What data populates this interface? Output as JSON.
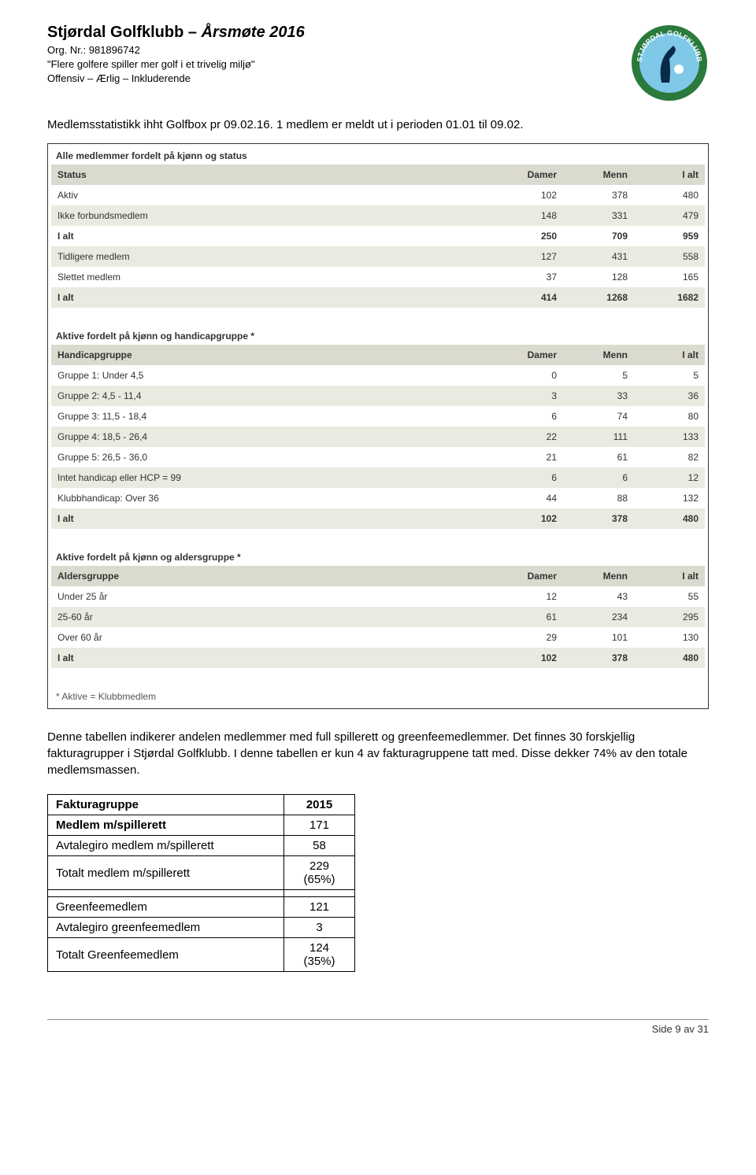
{
  "header": {
    "title_plain": "Stjørdal Golfklubb – ",
    "title_em": "Årsmøte 2016",
    "org": "Org. Nr.: 981896742",
    "slogan": "\"Flere golfere spiller mer golf i et trivelig miljø\"",
    "values": "Offensiv – Ærlig – Inkluderende"
  },
  "logo": {
    "outer_color": "#2a7a3c",
    "inner_color": "#7fc8e8",
    "text_top": "STJØRDA",
    "text_bot": "GOLFKLU"
  },
  "intro": "Medlemsstatistikk ihht Golfbox pr 09.02.16. 1 medlem er meldt ut i perioden 01.01 til 09.02.",
  "tables_style": {
    "head_bg": "#dbdace",
    "row_odd_bg": "#ebeae0",
    "row_even_bg": "#ffffff",
    "font_family": "Verdana",
    "font_size_pt": 9,
    "text_color": "#333333"
  },
  "table1": {
    "title": "Alle medlemmer fordelt på kjønn og status",
    "columns": [
      "Status",
      "Damer",
      "Menn",
      "I alt"
    ],
    "rows": [
      {
        "label": "Aktiv",
        "damer": 102,
        "menn": 378,
        "ialt": 480,
        "bold": false
      },
      {
        "label": "Ikke forbundsmedlem",
        "damer": 148,
        "menn": 331,
        "ialt": 479,
        "bold": false
      },
      {
        "label": "I alt",
        "damer": 250,
        "menn": 709,
        "ialt": 959,
        "bold": true
      },
      {
        "label": "Tidligere medlem",
        "damer": 127,
        "menn": 431,
        "ialt": 558,
        "bold": false
      },
      {
        "label": "Slettet medlem",
        "damer": 37,
        "menn": 128,
        "ialt": 165,
        "bold": false
      },
      {
        "label": "I alt",
        "damer": 414,
        "menn": 1268,
        "ialt": 1682,
        "bold": true
      }
    ]
  },
  "table2": {
    "title": "Aktive fordelt på kjønn og handicapgruppe *",
    "columns": [
      "Handicapgruppe",
      "Damer",
      "Menn",
      "I alt"
    ],
    "rows": [
      {
        "label": "Gruppe 1: Under 4,5",
        "damer": 0,
        "menn": 5,
        "ialt": 5,
        "bold": false
      },
      {
        "label": "Gruppe 2: 4,5 - 11,4",
        "damer": 3,
        "menn": 33,
        "ialt": 36,
        "bold": false
      },
      {
        "label": "Gruppe 3: 11,5 - 18,4",
        "damer": 6,
        "menn": 74,
        "ialt": 80,
        "bold": false
      },
      {
        "label": "Gruppe 4: 18,5 - 26,4",
        "damer": 22,
        "menn": 111,
        "ialt": 133,
        "bold": false
      },
      {
        "label": "Gruppe 5: 26,5 - 36,0",
        "damer": 21,
        "menn": 61,
        "ialt": 82,
        "bold": false
      },
      {
        "label": "Intet handicap eller HCP = 99",
        "damer": 6,
        "menn": 6,
        "ialt": 12,
        "bold": false
      },
      {
        "label": "Klubbhandicap: Over 36",
        "damer": 44,
        "menn": 88,
        "ialt": 132,
        "bold": false
      },
      {
        "label": "I alt",
        "damer": 102,
        "menn": 378,
        "ialt": 480,
        "bold": true
      }
    ]
  },
  "table3": {
    "title": "Aktive fordelt på kjønn og aldersgruppe *",
    "columns": [
      "Aldersgruppe",
      "Damer",
      "Menn",
      "I alt"
    ],
    "rows": [
      {
        "label": "Under 25 år",
        "damer": 12,
        "menn": 43,
        "ialt": 55,
        "bold": false
      },
      {
        "label": "25-60 år",
        "damer": 61,
        "menn": 234,
        "ialt": 295,
        "bold": false
      },
      {
        "label": "Over 60 år",
        "damer": 29,
        "menn": 101,
        "ialt": 130,
        "bold": false
      },
      {
        "label": "I alt",
        "damer": 102,
        "menn": 378,
        "ialt": 480,
        "bold": true
      }
    ]
  },
  "footnote": "* Aktive = Klubbmedlem",
  "para": "Denne tabellen indikerer andelen medlemmer med full spillerett og greenfeemedlemmer. Det finnes 30 forskjellig fakturagrupper i Stjørdal Golfklubb. I denne tabellen er kun 4 av fakturagruppene tatt med. Disse dekker 74% av den totale medlemsmassen.",
  "faktura": {
    "header": [
      "Fakturagruppe",
      "2015"
    ],
    "rows": [
      {
        "label": "Medlem m/spillerett",
        "value": "171",
        "bold": true
      },
      {
        "label": "Avtalegiro medlem m/spillerett",
        "value": "58",
        "bold": false
      },
      {
        "label": "Totalt medlem m/spillerett",
        "value": "229\n(65%)",
        "bold": false
      },
      {
        "label": "",
        "value": "",
        "bold": false
      },
      {
        "label": "Greenfeemedlem",
        "value": "121",
        "bold": false
      },
      {
        "label": "Avtalegiro greenfeemedlem",
        "value": "3",
        "bold": false
      },
      {
        "label": "Totalt Greenfeemedlem",
        "value": "124\n(35%)",
        "bold": false
      }
    ]
  },
  "footer": "Side 9 av 31"
}
